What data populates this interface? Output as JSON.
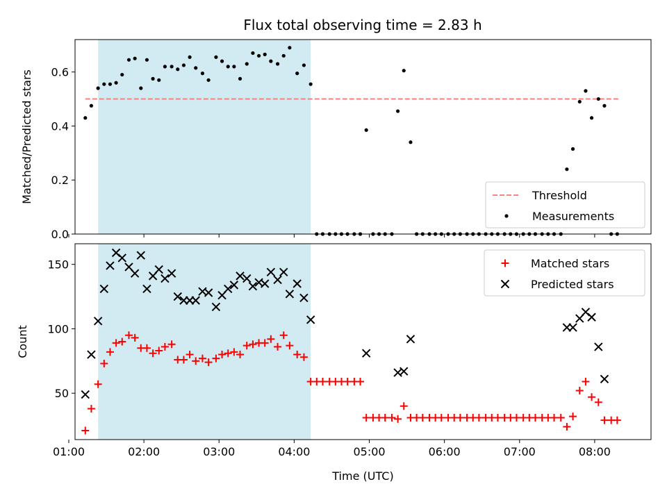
{
  "chart_data": [
    {
      "type": "scatter",
      "title": "Flux total observing time = 2.83 h",
      "ylabel": "Matched/Predicted stars",
      "xlabel": "",
      "xlim": [
        1.0833,
        8.75
      ],
      "ylim": [
        0,
        0.72
      ],
      "yticks": [
        0.0,
        0.2,
        0.4,
        0.6
      ],
      "ytick_labels": [
        "0.0",
        "0.2",
        "0.4",
        "0.6"
      ],
      "xticks": [
        1,
        2,
        3,
        4,
        5,
        6,
        7,
        8
      ],
      "grid": false,
      "legend_position": "lower-right",
      "shaded_span": {
        "x": [
          1.39,
          4.22
        ],
        "color": "#add8e6"
      },
      "threshold": {
        "name": "Threshold",
        "value": 0.5,
        "x": [
          1.22,
          8.32
        ],
        "color": "#ff7f7f"
      },
      "series": [
        {
          "name": "Measurements",
          "color": "#000000",
          "x": [
            1.22,
            1.3,
            1.39,
            1.47,
            1.55,
            1.63,
            1.71,
            1.8,
            1.88,
            1.96,
            2.04,
            2.12,
            2.2,
            2.28,
            2.37,
            2.45,
            2.53,
            2.61,
            2.69,
            2.78,
            2.86,
            2.96,
            3.04,
            3.12,
            3.2,
            3.28,
            3.37,
            3.45,
            3.53,
            3.61,
            3.69,
            3.78,
            3.86,
            3.94,
            4.04,
            4.13,
            4.22,
            4.3,
            4.38,
            4.47,
            4.55,
            4.63,
            4.71,
            4.8,
            4.88,
            4.96,
            5.05,
            5.13,
            5.21,
            5.3,
            5.38,
            5.46,
            5.55,
            5.63,
            5.71,
            5.8,
            5.88,
            5.96,
            6.05,
            6.13,
            6.21,
            6.3,
            6.38,
            6.46,
            6.55,
            6.63,
            6.71,
            6.8,
            6.88,
            6.96,
            7.05,
            7.13,
            7.21,
            7.3,
            7.38,
            7.46,
            7.55,
            7.63,
            7.71,
            7.8,
            7.88,
            7.96,
            8.05,
            8.13,
            8.22,
            8.3
          ],
          "y": [
            0.43,
            0.475,
            0.54,
            0.555,
            0.555,
            0.56,
            0.59,
            0.645,
            0.65,
            0.54,
            0.645,
            0.575,
            0.57,
            0.62,
            0.62,
            0.61,
            0.625,
            0.655,
            0.615,
            0.595,
            0.57,
            0.655,
            0.64,
            0.62,
            0.62,
            0.575,
            0.63,
            0.67,
            0.66,
            0.665,
            0.64,
            0.63,
            0.66,
            0.69,
            0.595,
            0.625,
            0.555,
            0.0,
            0.0,
            0.0,
            0.0,
            0.0,
            0.0,
            0.0,
            0.0,
            0.385,
            0.0,
            0.0,
            0.0,
            0.0,
            0.455,
            0.605,
            0.34,
            0.0,
            0.0,
            0.0,
            0.0,
            0.0,
            0.0,
            0.0,
            0.0,
            0.0,
            0.0,
            0.0,
            0.0,
            0.0,
            0.0,
            0.0,
            0.0,
            0.0,
            0.0,
            0.0,
            0.0,
            0.0,
            0.0,
            0.0,
            0.0,
            0.24,
            0.315,
            0.49,
            0.53,
            0.43,
            0.5,
            0.475,
            0.0,
            0.0
          ]
        }
      ],
      "legend": [
        "Threshold",
        "Measurements"
      ]
    },
    {
      "type": "scatter",
      "title": "",
      "ylabel": "Count",
      "xlabel": "Time (UTC)",
      "xlim": [
        1.0833,
        8.75
      ],
      "ylim": [
        14,
        166
      ],
      "yticks": [
        50,
        100,
        150
      ],
      "ytick_labels": [
        "50",
        "100",
        "150"
      ],
      "xticks": [
        1,
        2,
        3,
        4,
        5,
        6,
        7,
        8
      ],
      "xtick_labels": [
        "01:00",
        "02:00",
        "03:00",
        "04:00",
        "05:00",
        "06:00",
        "07:00",
        "08:00"
      ],
      "grid": false,
      "legend_position": "upper-right",
      "shaded_span": {
        "x": [
          1.39,
          4.22
        ],
        "color": "#add8e6"
      },
      "series": [
        {
          "name": "Matched stars",
          "marker": "plus",
          "color": "#ff0000",
          "x": [
            1.22,
            1.3,
            1.39,
            1.47,
            1.55,
            1.63,
            1.71,
            1.8,
            1.88,
            1.96,
            2.04,
            2.12,
            2.2,
            2.28,
            2.37,
            2.45,
            2.53,
            2.61,
            2.69,
            2.78,
            2.86,
            2.96,
            3.04,
            3.12,
            3.2,
            3.28,
            3.37,
            3.45,
            3.53,
            3.61,
            3.69,
            3.78,
            3.86,
            3.94,
            4.04,
            4.13,
            4.22,
            4.3,
            4.38,
            4.47,
            4.55,
            4.63,
            4.71,
            4.8,
            4.88,
            4.96,
            5.05,
            5.13,
            5.21,
            5.3,
            5.38,
            5.46,
            5.55,
            5.63,
            5.71,
            5.8,
            5.88,
            5.96,
            6.05,
            6.13,
            6.21,
            6.3,
            6.38,
            6.46,
            6.55,
            6.63,
            6.71,
            6.8,
            6.88,
            6.96,
            7.05,
            7.13,
            7.21,
            7.3,
            7.38,
            7.46,
            7.55,
            7.63,
            7.71,
            7.8,
            7.88,
            7.96,
            8.05,
            8.13,
            8.22,
            8.3
          ],
          "y": [
            21,
            38,
            57,
            73,
            82,
            89,
            90,
            95,
            93,
            85,
            85,
            81,
            83,
            86,
            88,
            76,
            76,
            80,
            75,
            77,
            74,
            77,
            80,
            81,
            82,
            80,
            87,
            88,
            89,
            89,
            92,
            86,
            95,
            87,
            80,
            78,
            59,
            59,
            59,
            59,
            59,
            59,
            59,
            59,
            59,
            31,
            31,
            31,
            31,
            31,
            30,
            40,
            31,
            31,
            31,
            31,
            31,
            31,
            31,
            31,
            31,
            31,
            31,
            31,
            31,
            31,
            31,
            31,
            31,
            31,
            31,
            31,
            31,
            31,
            31,
            31,
            31,
            24,
            32,
            52,
            59,
            47,
            43,
            29,
            29,
            29
          ]
        },
        {
          "name": "Predicted stars",
          "marker": "x",
          "color": "#000000",
          "x": [
            1.22,
            1.3,
            1.39,
            1.47,
            1.55,
            1.63,
            1.71,
            1.8,
            1.88,
            1.96,
            2.04,
            2.12,
            2.2,
            2.28,
            2.37,
            2.45,
            2.53,
            2.61,
            2.69,
            2.78,
            2.86,
            2.96,
            3.04,
            3.12,
            3.2,
            3.28,
            3.37,
            3.45,
            3.53,
            3.61,
            3.69,
            3.78,
            3.86,
            3.94,
            4.04,
            4.13,
            4.22,
            4.96,
            5.38,
            5.46,
            5.55,
            7.63,
            7.71,
            7.8,
            7.88,
            7.96,
            8.05,
            8.13
          ],
          "y": [
            49,
            80,
            106,
            131,
            149,
            159,
            155,
            148,
            143,
            157,
            131,
            141,
            146,
            139,
            143,
            125,
            122,
            122,
            122,
            129,
            128,
            117,
            126,
            131,
            134,
            141,
            139,
            133,
            136,
            135,
            144,
            138,
            144,
            127,
            135,
            124,
            107,
            81,
            66,
            67,
            92,
            101,
            101,
            108,
            113,
            109,
            86,
            61
          ]
        }
      ],
      "legend": [
        "Matched stars",
        "Predicted stars"
      ]
    }
  ]
}
